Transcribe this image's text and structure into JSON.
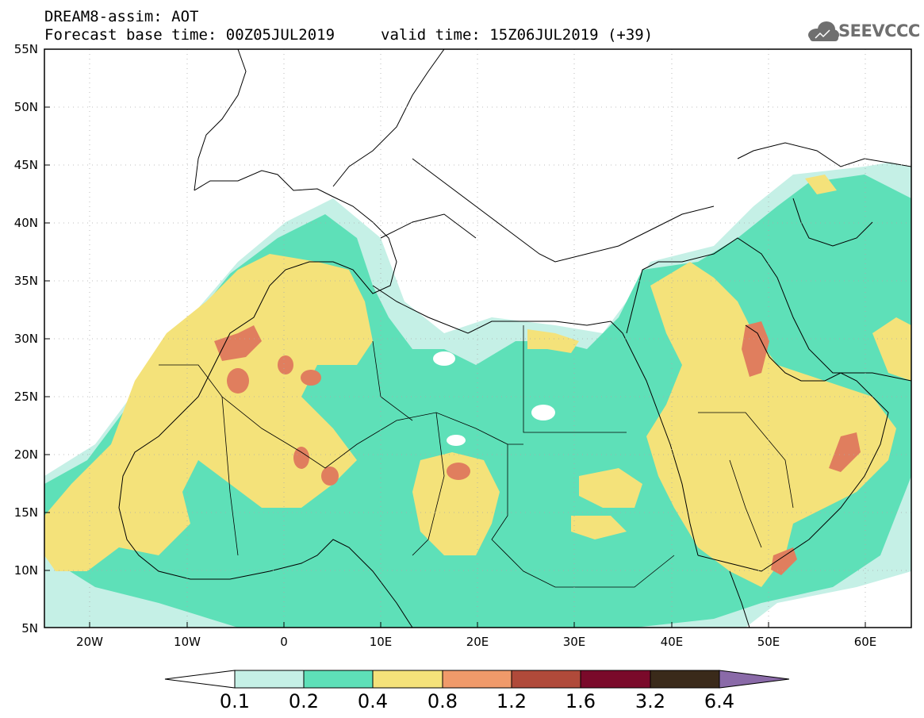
{
  "header": {
    "line1": "DREAM8-assim: AOT",
    "line2": "Forecast base time: 00Z05JUL2019",
    "line3": "valid time: 15Z06JUL2019 (+39)"
  },
  "logo": {
    "text": "SEEVCCC",
    "icon": "cloud-icon"
  },
  "map": {
    "lon_range": [
      -25,
      65
    ],
    "lat_range": [
      5,
      55
    ],
    "lat_ticks": [
      "55N",
      "50N",
      "45N",
      "40N",
      "35N",
      "30N",
      "25N",
      "20N",
      "15N",
      "10N",
      "5N"
    ],
    "lon_ticks": [
      "20W",
      "10W",
      "0",
      "10E",
      "20E",
      "30E",
      "40E",
      "50E",
      "60E"
    ]
  },
  "colorbar": {
    "labels": [
      "0.1",
      "0.2",
      "0.4",
      "0.8",
      "1.2",
      "1.6",
      "3.2",
      "6.4"
    ],
    "colors": [
      "#ffffff",
      "#c5f0e6",
      "#5ee0b8",
      "#f4e27a",
      "#f09a6a",
      "#b04a3a",
      "#7a0a2a",
      "#3a2a1a",
      "#8a6aa8"
    ]
  },
  "palette": {
    "c1": "#c5f0e6",
    "c2": "#5ee0b8",
    "c3": "#f4e27a",
    "c4": "#f09a6a",
    "c5": "#d9775a"
  }
}
